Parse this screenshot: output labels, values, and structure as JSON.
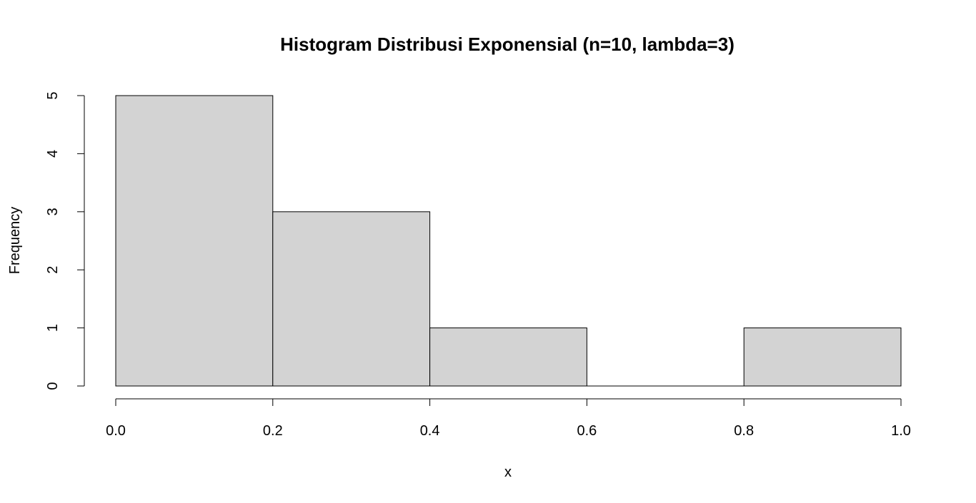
{
  "chart_data": {
    "type": "bar",
    "title": "Histogram Distribusi Exponensial (n=10, lambda=3)",
    "xlabel": "x",
    "ylabel": "Frequency",
    "bins": [
      {
        "start": 0.0,
        "end": 0.2,
        "count": 5
      },
      {
        "start": 0.2,
        "end": 0.4,
        "count": 3
      },
      {
        "start": 0.4,
        "end": 0.6,
        "count": 1
      },
      {
        "start": 0.6,
        "end": 0.8,
        "count": 0
      },
      {
        "start": 0.8,
        "end": 1.0,
        "count": 1
      }
    ],
    "xlim": [
      0.0,
      1.0
    ],
    "ylim": [
      0,
      5
    ],
    "x_ticks": [
      "0.0",
      "0.2",
      "0.4",
      "0.6",
      "0.8",
      "1.0"
    ],
    "y_ticks": [
      "0",
      "1",
      "2",
      "3",
      "4",
      "5"
    ],
    "bar_color": "#d3d3d3",
    "grid": false
  }
}
